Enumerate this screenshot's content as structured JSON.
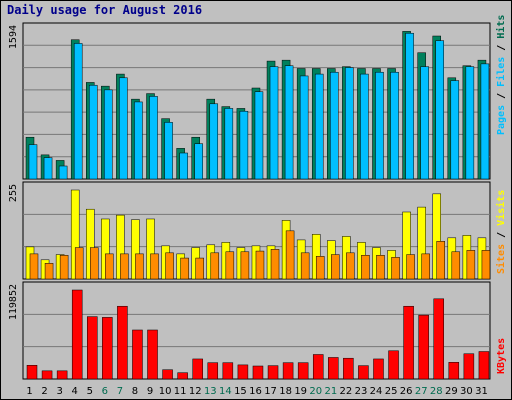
{
  "title": "Daily usage for August 2016",
  "colors": {
    "hits": "#00805c",
    "files": "#00bfff",
    "pages": "#005a6e",
    "visits": "#ffff00",
    "sites": "#ff8c00",
    "kbytes": "#ff0000",
    "weekend_label": "#006b4f",
    "weekday_label": "#000000"
  },
  "chart_data": [
    {
      "type": "bar",
      "name": "hits-files-pages",
      "max_label": "1594",
      "right_label": [
        "Pages",
        "Files",
        "Hits"
      ],
      "ymax": 1594,
      "x": [
        1,
        2,
        3,
        4,
        5,
        6,
        7,
        8,
        9,
        10,
        11,
        12,
        13,
        14,
        15,
        16,
        17,
        18,
        19,
        20,
        21,
        22,
        23,
        24,
        25,
        26,
        27,
        28,
        29,
        30,
        31
      ],
      "series": [
        {
          "name": "Hits",
          "values": [
            450,
            260,
            200,
            1500,
            1040,
            1000,
            1130,
            860,
            920,
            650,
            330,
            450,
            860,
            780,
            760,
            980,
            1270,
            1280,
            1190,
            1190,
            1190,
            1210,
            1190,
            1190,
            1190,
            1590,
            1360,
            1540,
            1090,
            1220,
            1280
          ]
        },
        {
          "name": "Files",
          "values": [
            370,
            230,
            140,
            1460,
            1010,
            960,
            1090,
            830,
            890,
            610,
            280,
            380,
            810,
            760,
            730,
            940,
            1210,
            1220,
            1110,
            1130,
            1150,
            1200,
            1130,
            1150,
            1150,
            1570,
            1210,
            1490,
            1060,
            1210,
            1240
          ]
        },
        {
          "name": "Pages",
          "values": [
            370,
            230,
            140,
            1460,
            1010,
            960,
            1090,
            830,
            890,
            610,
            280,
            380,
            810,
            760,
            730,
            940,
            1210,
            1220,
            1110,
            1130,
            1150,
            1200,
            1130,
            1150,
            1150,
            1570,
            1210,
            1490,
            1060,
            1210,
            1240
          ]
        }
      ]
    },
    {
      "type": "bar",
      "name": "visits-sites",
      "max_label": "255",
      "right_label": [
        "Sites",
        "Visits"
      ],
      "ymax": 255,
      "series": [
        {
          "name": "Visits",
          "values": [
            92,
            55,
            70,
            255,
            200,
            172,
            183,
            170,
            172,
            95,
            72,
            90,
            98,
            105,
            90,
            95,
            95,
            168,
            112,
            128,
            110,
            122,
            105,
            90,
            82,
            192,
            206,
            244,
            118,
            125,
            118
          ]
        },
        {
          "name": "Sites",
          "values": [
            72,
            45,
            68,
            90,
            90,
            72,
            72,
            72,
            72,
            75,
            60,
            60,
            75,
            78,
            78,
            80,
            85,
            138,
            75,
            65,
            70,
            75,
            68,
            68,
            62,
            70,
            72,
            108,
            78,
            82,
            82
          ]
        }
      ]
    },
    {
      "type": "bar",
      "name": "kbytes",
      "max_label": "119852",
      "right_label": [
        "KBytes"
      ],
      "ymax": 119852,
      "series": [
        {
          "name": "KBytes",
          "values": [
            18500,
            11000,
            11000,
            119852,
            84000,
            83000,
            98000,
            66000,
            66000,
            12500,
            8500,
            27000,
            22000,
            22000,
            19000,
            17500,
            18000,
            22000,
            22000,
            33000,
            29000,
            28000,
            18000,
            27000,
            38000,
            98000,
            86000,
            108000,
            22500,
            34000,
            37000
          ]
        }
      ]
    }
  ],
  "days": [
    "1",
    "2",
    "3",
    "4",
    "5",
    "6",
    "7",
    "8",
    "9",
    "10",
    "11",
    "12",
    "13",
    "14",
    "15",
    "16",
    "17",
    "18",
    "19",
    "20",
    "21",
    "22",
    "23",
    "24",
    "25",
    "26",
    "27",
    "28",
    "29",
    "30",
    "31"
  ],
  "weekend_days": [
    6,
    7,
    13,
    14,
    20,
    21,
    27,
    28
  ]
}
